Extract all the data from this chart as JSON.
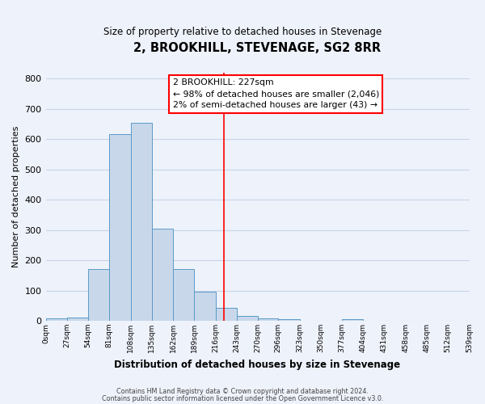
{
  "title": "2, BROOKHILL, STEVENAGE, SG2 8RR",
  "subtitle": "Size of property relative to detached houses in Stevenage",
  "xlabel": "Distribution of detached houses by size in Stevenage",
  "ylabel": "Number of detached properties",
  "bar_edges": [
    0,
    27,
    54,
    81,
    108,
    135,
    162,
    189,
    216,
    243,
    270,
    296,
    323,
    350,
    377,
    404,
    431,
    458,
    485,
    512,
    539
  ],
  "bar_heights": [
    8,
    12,
    172,
    617,
    653,
    305,
    172,
    97,
    42,
    15,
    8,
    5,
    0,
    0,
    5,
    0,
    0,
    0,
    0,
    0
  ],
  "bar_color": "#c8d8ea",
  "bar_edge_color": "#5a9ac8",
  "property_line_x": 227,
  "ylim": [
    0,
    820
  ],
  "yticks": [
    0,
    100,
    200,
    300,
    400,
    500,
    600,
    700,
    800
  ],
  "tick_labels": [
    "0sqm",
    "27sqm",
    "54sqm",
    "81sqm",
    "108sqm",
    "135sqm",
    "162sqm",
    "189sqm",
    "216sqm",
    "243sqm",
    "270sqm",
    "296sqm",
    "323sqm",
    "350sqm",
    "377sqm",
    "404sqm",
    "431sqm",
    "458sqm",
    "485sqm",
    "512sqm",
    "539sqm"
  ],
  "annotation_title": "2 BROOKHILL: 227sqm",
  "annotation_line1": "← 98% of detached houses are smaller (2,046)",
  "annotation_line2": "2% of semi-detached houses are larger (43) →",
  "footer_line1": "Contains HM Land Registry data © Crown copyright and database right 2024.",
  "footer_line2": "Contains public sector information licensed under the Open Government Licence v3.0.",
  "grid_color": "#c8d4e8",
  "background_color": "#eef2fb"
}
